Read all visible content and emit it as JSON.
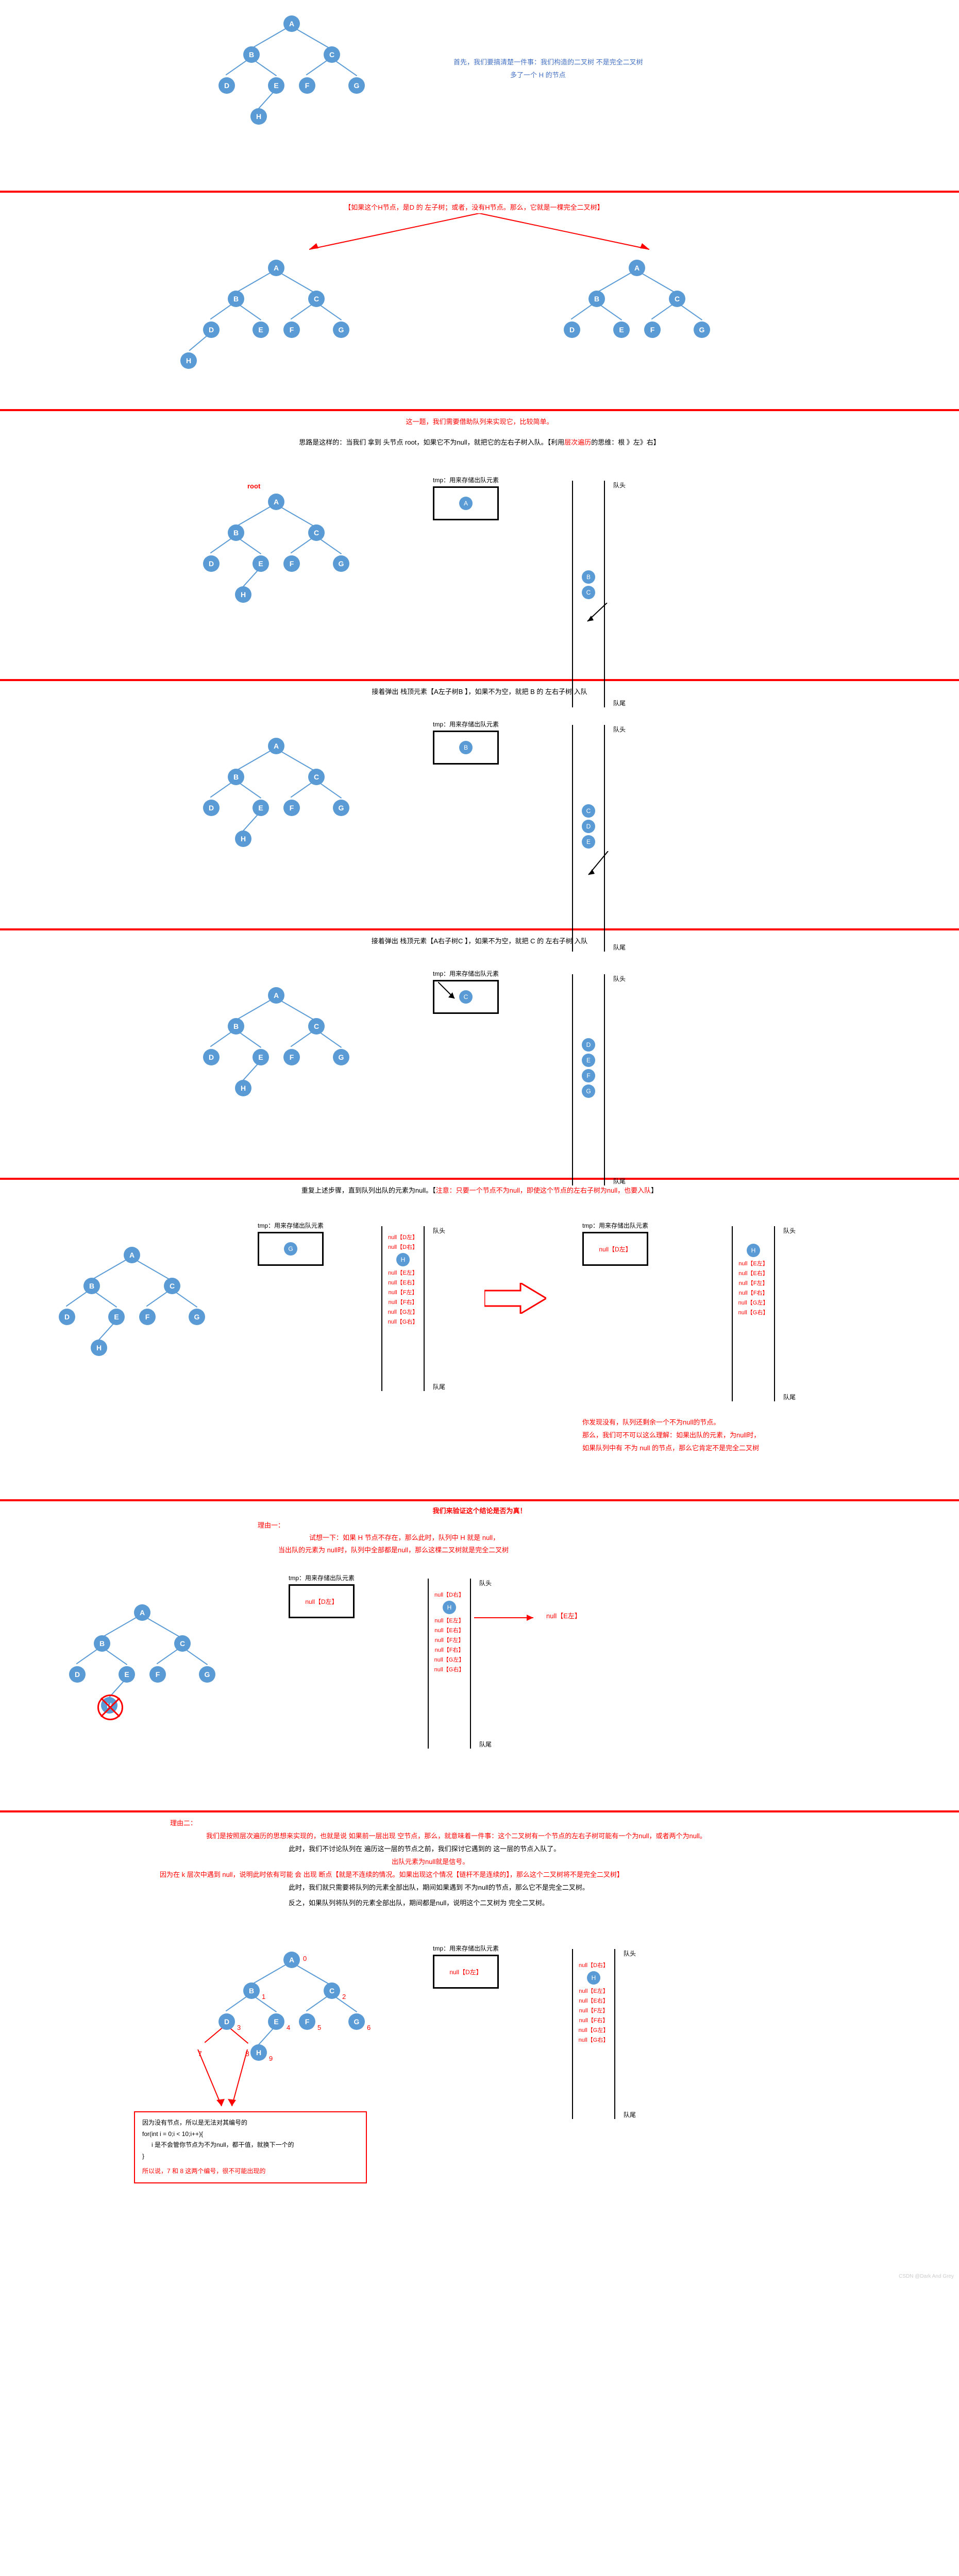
{
  "colors": {
    "node": "#5b9bd5",
    "accent": "#ff0000",
    "blue": "#4472c4",
    "border": "#000000"
  },
  "labels": {
    "tmp": "tmp：用来存储出队元素",
    "head": "队头",
    "tail": "队尾",
    "root": "root"
  },
  "nodes": {
    "A": "A",
    "B": "B",
    "C": "C",
    "D": "D",
    "E": "E",
    "F": "F",
    "G": "G",
    "H": "H"
  },
  "s1": {
    "text1": "首先，我们要搞清楚一件事：我们构造的二叉树 不是完全二叉树",
    "text2": "多了一个 H 的节点"
  },
  "s2": {
    "red_title": "【如果这个H节点，是D 的 左子树；或者，没有H节点。那么，它就是一棵完全二叉树】"
  },
  "s3": {
    "red_line": "这一题，我们需要借助队列来实现它，比较简单。",
    "think": "思路是这样的：当我们 拿到 头节点 root，如果它不为null，就把它的左右子树入队。【利用",
    "think_red": "层次遍历",
    "think_tail": "的思维：根 》左》右】"
  },
  "s4": {
    "caption": "接着弹出 栈顶元素【A左子树B 】，如果不为空，就把 B 的 左右子树 入队"
  },
  "s5": {
    "caption": "接着弹出 栈顶元素【A右子树C 】，如果不为空，就把 C 的 左右子树 入队"
  },
  "s6": {
    "caption": "重复上述步骤，直到队列出队的元素为null。【",
    "caption_red": "注意：只要一个节点不为null，即使这个节点的左右子树为null，也要入队",
    "caption_tail": "】",
    "q_items_left": [
      "null【D左】",
      "null【D右】",
      "H",
      "null【E左】",
      "null【E右】",
      "null【F左】",
      "null【F右】",
      "null【G左】",
      "null【G右】"
    ],
    "q_items_right": [
      "H",
      "null【E左】",
      "null【E右】",
      "null【F左】",
      "null【F右】",
      "null【G左】",
      "null【G右】"
    ],
    "tmp_left": "G",
    "tmp_right": "null【D左】",
    "red1": "你发现没有，队列还剩余一个不为null的节点。",
    "red2": "那么，我们可不可以这么理解：如果出队的元素，为null时，",
    "red3": "如果队列中有 不为 null 的节点，那么它肯定不是完全二叉树"
  },
  "s7": {
    "title": "我们来验证这个结论是否为真！",
    "reason": "理由一：",
    "reason1": "试想一下：如果 H 节点不存在，那么此时，队列中 H 就是 null，",
    "reason2": "当出队的元素为 null时，队列中全部都是null，那么这棵二叉树就是完全二叉树",
    "tmp_val": "null【D左】",
    "annot": "null【E左】",
    "q_items": [
      "null【D右】",
      "H",
      "null【E左】",
      "null【E右】",
      "null【F左】",
      "null【F右】",
      "null【G左】",
      "null【G右】"
    ]
  },
  "s8": {
    "title": "理由二：",
    "l1": "我们是按照层次遍历的思想来实现的，也就是说 如果前一层出现 空节点，那么，就意味着一件事：这个二叉树有一个节点的左右子树可能有一个为null，或者两个为null。",
    "l2": "此时，我们不讨论队列在 遍历这一层的节点之前，我们探讨它遇到的 这一层的节点入队了。",
    "l3": "出队元素为null就是信号。",
    "l4_a": "因为在 k 层次中遇到 null，说明此时依有可能 会 出现 断点【就是不连续的情况。如果出现这个情况【链杆不是连续的】，那么这个二叉树将不是完全二叉树】",
    "l5": "此时，我们就只需要将队列的元素全部出队，期间如果遇到 不为null的节点，那么它不是完全二叉树。",
    "l6": "反之，如果队列将队列的元素全部出队，期间都是null，说明这个二叉树为 完全二叉树。",
    "tmp_val": "null【D左】",
    "q_items": [
      "null【D右】",
      "H",
      "null【E左】",
      "null【E右】",
      "null【F左】",
      "null【F右】",
      "null【G左】",
      "null【G右】"
    ],
    "code1": "因为没有节点，所以是无法对其编号的",
    "code2": "for(int i = 0;i < 10;i++){",
    "code3": "  i 是不会管你节点为不为null，都干值，就换下一个的",
    "code4": "}",
    "code5": "所以说，7 和 8 这两个编号，很不可能出现的"
  },
  "watermark": "CSDN @Dark And Grey"
}
